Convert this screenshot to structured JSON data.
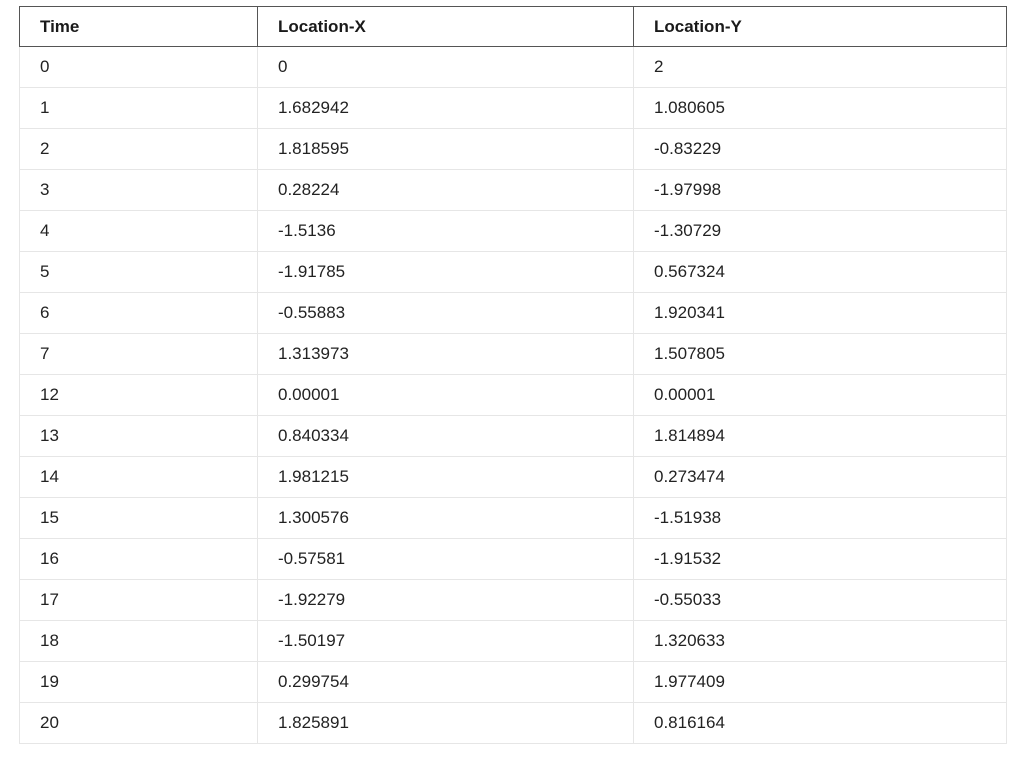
{
  "table": {
    "headers": [
      "Time",
      "Location-X",
      "Location-Y"
    ],
    "rows": [
      [
        "0",
        "0",
        "2"
      ],
      [
        "1",
        "1.682942",
        "1.080605"
      ],
      [
        "2",
        "1.818595",
        "-0.83229"
      ],
      [
        "3",
        "0.28224",
        "-1.97998"
      ],
      [
        "4",
        "-1.5136",
        "-1.30729"
      ],
      [
        "5",
        "-1.91785",
        "0.567324"
      ],
      [
        "6",
        "-0.55883",
        "1.920341"
      ],
      [
        "7",
        "1.313973",
        "1.507805"
      ],
      [
        "12",
        "0.00001",
        "0.00001"
      ],
      [
        "13",
        "0.840334",
        "1.814894"
      ],
      [
        "14",
        "1.981215",
        "0.273474"
      ],
      [
        "15",
        "1.300576",
        "-1.51938"
      ],
      [
        "16",
        "-0.57581",
        "-1.91532"
      ],
      [
        "17",
        "-1.92279",
        "-0.55033"
      ],
      [
        "18",
        "-1.50197",
        "1.320633"
      ],
      [
        "19",
        "0.299754",
        "1.977409"
      ],
      [
        "20",
        "1.825891",
        "0.816164"
      ]
    ]
  }
}
